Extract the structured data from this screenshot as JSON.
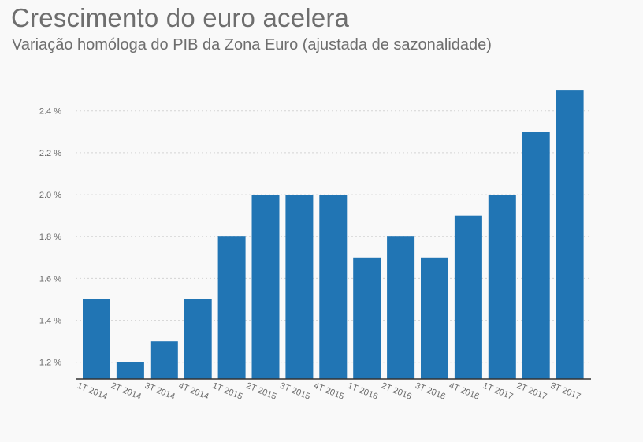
{
  "chart_data": {
    "type": "bar",
    "title": "Crescimento do euro acelera",
    "subtitle": "Variação homóloga do PIB da Zona Euro (ajustada de sazonalidade)",
    "xlabel": "",
    "ylabel": "",
    "categories": [
      "1T 2014",
      "2T 2014",
      "3T 2014",
      "4T 2014",
      "1T 2015",
      "2T 2015",
      "3T 2015",
      "4T 2015",
      "1T 2016",
      "2T 2016",
      "3T 2016",
      "4T 2016",
      "1T 2017",
      "2T 2017",
      "3T 2017"
    ],
    "values": [
      1.5,
      1.2,
      1.3,
      1.5,
      1.8,
      2.0,
      2.0,
      2.0,
      1.7,
      1.8,
      1.7,
      1.9,
      2.0,
      2.3,
      2.5
    ],
    "ylim": [
      1.12,
      2.5
    ],
    "yticks": [
      1.2,
      1.4,
      1.6,
      1.8,
      2.0,
      2.2,
      2.4
    ],
    "ytick_labels": [
      "1.2 %",
      "1.4 %",
      "1.6 %",
      "1.8 %",
      "2.0 %",
      "2.2 %",
      "2.4 %"
    ],
    "grid": true,
    "legend": "none",
    "bar_color": "#2175b4"
  }
}
